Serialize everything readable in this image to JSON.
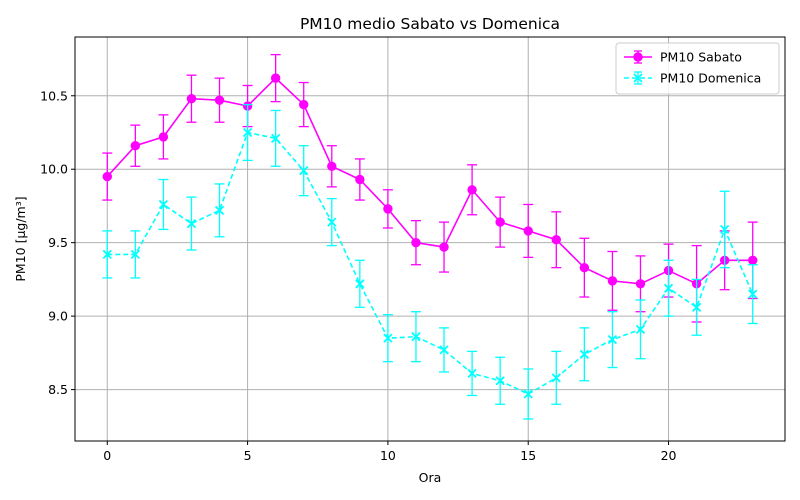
{
  "chart_data": {
    "type": "line",
    "title": "PM10 medio Sabato vs Domenica",
    "xlabel": "Ora",
    "ylabel": "PM10 [µg/m³]",
    "xlim": [
      -1.15,
      24.15
    ],
    "ylim": [
      8.15,
      10.9
    ],
    "xticks": [
      0,
      5,
      10,
      15,
      20
    ],
    "yticks": [
      8.5,
      9.0,
      9.5,
      10.0,
      10.5
    ],
    "xtick_labels": [
      "0",
      "5",
      "10",
      "15",
      "20"
    ],
    "ytick_labels": [
      "8.5",
      "9.0",
      "9.5",
      "10.0",
      "10.5"
    ],
    "grid": true,
    "legend_position": "top-right",
    "x": [
      0,
      1,
      2,
      3,
      4,
      5,
      6,
      7,
      8,
      9,
      10,
      11,
      12,
      13,
      14,
      15,
      16,
      17,
      18,
      19,
      20,
      21,
      22,
      23
    ],
    "series": [
      {
        "name": "PM10 Sabato",
        "color": "#ff00ff",
        "line_style": "solid",
        "marker": "circle",
        "values": [
          9.95,
          10.16,
          10.22,
          10.48,
          10.47,
          10.43,
          10.62,
          10.44,
          10.02,
          9.93,
          9.73,
          9.5,
          9.47,
          9.86,
          9.64,
          9.58,
          9.52,
          9.33,
          9.24,
          9.22,
          9.31,
          9.22,
          9.38,
          9.38
        ],
        "errors": [
          0.16,
          0.14,
          0.15,
          0.16,
          0.15,
          0.14,
          0.16,
          0.15,
          0.14,
          0.14,
          0.13,
          0.15,
          0.17,
          0.17,
          0.17,
          0.18,
          0.19,
          0.2,
          0.2,
          0.19,
          0.18,
          0.26,
          0.2,
          0.26
        ]
      },
      {
        "name": "PM10 Domenica",
        "color": "#00ffff",
        "line_style": "dashed",
        "marker": "x",
        "values": [
          9.42,
          9.42,
          9.76,
          9.63,
          9.72,
          10.25,
          10.21,
          9.99,
          9.64,
          9.22,
          8.85,
          8.86,
          8.77,
          8.61,
          8.56,
          8.47,
          8.58,
          8.74,
          8.84,
          8.91,
          9.19,
          9.06,
          9.59,
          9.15
        ],
        "errors": [
          0.16,
          0.16,
          0.17,
          0.18,
          0.18,
          0.19,
          0.19,
          0.17,
          0.16,
          0.16,
          0.16,
          0.17,
          0.15,
          0.15,
          0.16,
          0.17,
          0.18,
          0.18,
          0.19,
          0.2,
          0.19,
          0.19,
          0.26,
          0.2
        ]
      }
    ]
  }
}
